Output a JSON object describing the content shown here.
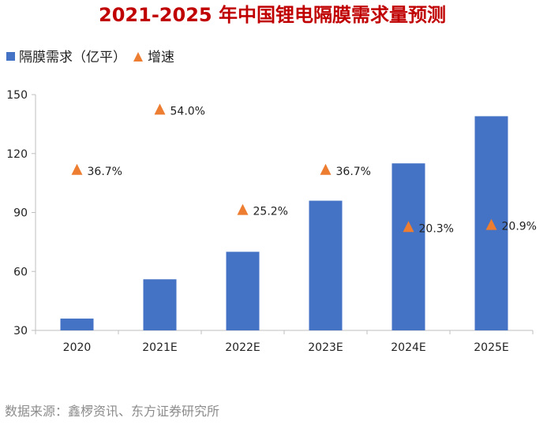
{
  "colors": {
    "bar": "#4472c4",
    "marker": "#ed7d31",
    "title": "#c00000",
    "axis": "#bfbfbf",
    "source": "#8c8c8c"
  },
  "chart_data": {
    "type": "bar",
    "title": "2021-2025 年中国锂电隔膜需求量预测",
    "categories": [
      "2020",
      "2021E",
      "2022E",
      "2023E",
      "2024E",
      "2025E"
    ],
    "ylim": [
      30,
      150
    ],
    "yticks": [
      30,
      60,
      90,
      120,
      150
    ],
    "legend_position": "top-left",
    "grid": false,
    "series": [
      {
        "name": "隔膜需求（亿平）",
        "type": "bar",
        "values": [
          36,
          56,
          70,
          96,
          115,
          139
        ]
      },
      {
        "name": "增速",
        "type": "marker",
        "marker": "triangle",
        "values": [
          36.7,
          54.0,
          25.2,
          36.7,
          20.3,
          20.9
        ],
        "labels": [
          "36.7%",
          "54.0%",
          "25.2%",
          "36.7%",
          "20.3%",
          "20.9%"
        ],
        "secondary_axis_hidden": true
      }
    ]
  },
  "source": "数据来源：鑫椤资讯、东方证券研究所"
}
